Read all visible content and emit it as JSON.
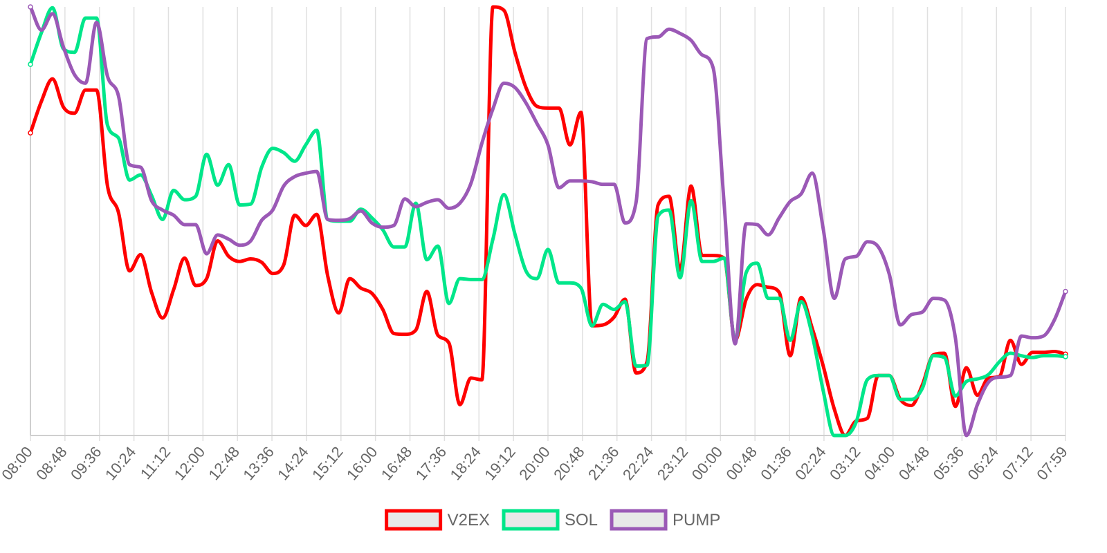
{
  "chart_data": {
    "type": "line",
    "title": "",
    "xlabel": "",
    "ylabel": "",
    "grid": true,
    "legend_position": "bottom-center",
    "ylim": [
      0,
      100
    ],
    "x_ticks": [
      "08:00",
      "08:48",
      "09:36",
      "10:24",
      "11:12",
      "12:00",
      "12:48",
      "13:36",
      "14:24",
      "15:12",
      "16:00",
      "16:48",
      "17:36",
      "18:24",
      "19:12",
      "20:00",
      "20:48",
      "21:36",
      "22:24",
      "23:12",
      "00:00",
      "00:48",
      "01:36",
      "02:24",
      "03:12",
      "04:00",
      "04:48",
      "05:36",
      "06:24",
      "07:12",
      "07:59"
    ],
    "series": [
      {
        "name": "V2EX",
        "color": "#ff0000",
        "values": [
          70.6,
          78,
          83.2,
          76.6,
          75.2,
          80.6,
          80.6,
          58.2,
          52,
          38.4,
          42.2,
          33.4,
          27.4,
          34,
          41.4,
          35,
          36.6,
          45.4,
          41.8,
          40.6,
          41.2,
          40.4,
          37.8,
          39.8,
          51.4,
          49,
          51.6,
          37.2,
          28.6,
          36.6,
          34.4,
          33.2,
          29.4,
          23.8,
          23.6,
          24.6,
          33.6,
          23.4,
          21.6,
          7.2,
          13.4,
          13,
          100,
          99.2,
          89.4,
          81.2,
          76.8,
          76.4,
          76.4,
          67.8,
          75.4,
          25.6,
          25.8,
          27.6,
          31.8,
          14.6,
          17.2,
          53.8,
          55.8,
          38.6,
          58.2,
          42,
          42,
          41.4,
          22.2,
          31.8,
          35.2,
          34.6,
          33.4,
          18.6,
          32.2,
          25,
          16.2,
          6.2,
          0,
          3.4,
          4,
          14,
          14,
          8.4,
          7,
          11.8,
          18.8,
          19.2,
          6.8,
          15.8,
          9.4,
          13.4,
          13.8,
          22.2,
          16.6,
          19.4,
          19.4,
          19.6,
          19
        ]
      },
      {
        "name": "SOL",
        "color": "#00e68a",
        "values": [
          86.6,
          94,
          99.8,
          90.2,
          89.4,
          97.4,
          97.4,
          72.4,
          69.4,
          59.6,
          60.8,
          56,
          50.4,
          57.2,
          55,
          55.8,
          65.6,
          58.4,
          63.2,
          53.8,
          54,
          62.6,
          67,
          66,
          64,
          67.8,
          71.2,
          50.4,
          50,
          50,
          52.8,
          50.8,
          48,
          44,
          44,
          54.2,
          41,
          44.2,
          30.8,
          36.6,
          36.4,
          36.4,
          45.8,
          56.2,
          47,
          38.4,
          36.6,
          43.4,
          35.6,
          35.6,
          34.4,
          25.6,
          30.6,
          29.4,
          31.2,
          16.2,
          16.4,
          51.2,
          52.6,
          36.8,
          54.8,
          40.6,
          40.6,
          41.4,
          22.2,
          38,
          40.2,
          32,
          32,
          22.2,
          31.2,
          23.4,
          10.4,
          0,
          0,
          3.2,
          13,
          14,
          14,
          8.4,
          8.4,
          11,
          18.6,
          18.2,
          9.2,
          12.6,
          13.2,
          14.2,
          17.2,
          19.2,
          18.6,
          18.2,
          18.6,
          18.6,
          18.4
        ]
      },
      {
        "name": "PUMP",
        "color": "#9b59b6",
        "values": [
          100,
          94.6,
          98.4,
          90.6,
          84.2,
          82.2,
          96.4,
          83.8,
          79.2,
          63.2,
          62.6,
          54.8,
          52.6,
          51.4,
          49.2,
          49.2,
          42.4,
          46.8,
          45.8,
          44.4,
          45.4,
          50.2,
          52.6,
          58.2,
          60.4,
          61.2,
          61.6,
          50.4,
          50.2,
          50.6,
          52.4,
          49.6,
          48.6,
          49,
          55.2,
          53.4,
          54.4,
          55,
          53,
          54.2,
          58.8,
          68.2,
          76.2,
          82.2,
          81.2,
          77.6,
          72.8,
          67.8,
          57.8,
          59.4,
          59.4,
          59.2,
          58.6,
          58.6,
          49.6,
          54.4,
          92.6,
          93,
          94.8,
          93.8,
          92.2,
          88.8,
          85.8,
          54,
          21.4,
          49.4,
          49.2,
          46.8,
          50.8,
          54.6,
          56.4,
          61.2,
          48.2,
          32,
          41.2,
          41.8,
          45.2,
          44,
          37.6,
          25.8,
          28.2,
          28.8,
          32,
          31.6,
          22.8,
          0,
          7.2,
          12.4,
          13.6,
          14,
          23.2,
          22.8,
          23.2,
          27,
          33.6
        ]
      }
    ]
  }
}
